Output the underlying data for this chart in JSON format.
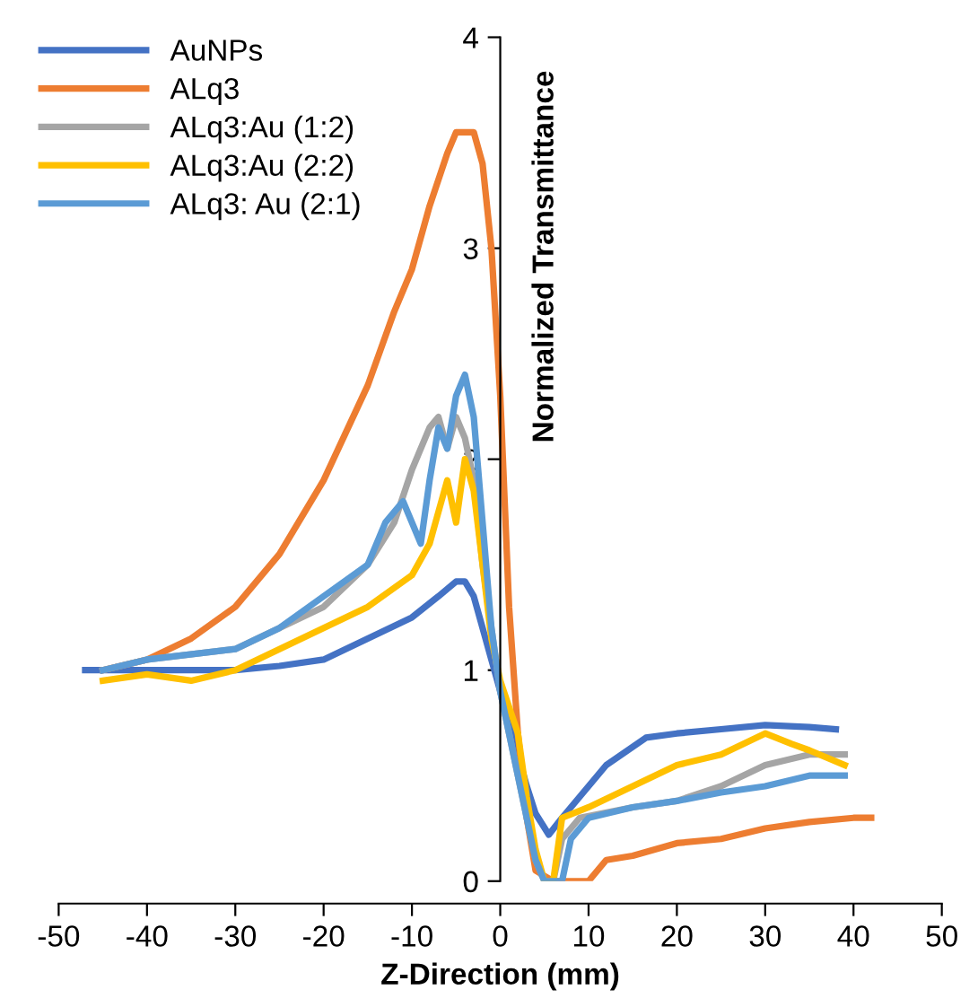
{
  "chart_data": {
    "type": "line",
    "xlabel": "Z-Direction (mm)",
    "ylabel": "Normalized Transmittance",
    "xlim": [
      -50,
      50
    ],
    "xticks": [
      -50,
      -40,
      -30,
      -20,
      -10,
      0,
      10,
      20,
      30,
      40,
      50
    ],
    "ylim": [
      0,
      4
    ],
    "yticks": [
      0,
      1,
      2,
      3,
      4
    ],
    "grid": false,
    "legend": "top left",
    "marker": "none",
    "line_style": "solid",
    "series": [
      {
        "name": "AuNPs",
        "color": "#4472c4",
        "x": [
          -47,
          -44,
          -40,
          -30,
          -25,
          -20,
          -15,
          -10,
          -7,
          -5,
          -4,
          -3,
          -2,
          -1,
          0,
          1,
          2,
          3,
          4,
          5.5,
          7,
          9,
          12,
          16.5,
          20,
          25,
          30,
          35,
          38
        ],
        "values": [
          1.0,
          1.0,
          1.0,
          1.0,
          1.02,
          1.05,
          1.15,
          1.25,
          1.35,
          1.42,
          1.42,
          1.35,
          1.2,
          1.05,
          0.9,
          0.75,
          0.6,
          0.45,
          0.32,
          0.22,
          0.3,
          0.4,
          0.55,
          0.68,
          0.7,
          0.72,
          0.74,
          0.73,
          0.72
        ]
      },
      {
        "name": "ALq3",
        "color": "#ed7d31",
        "x": [
          -45,
          -40,
          -35,
          -30,
          -25,
          -20,
          -15,
          -12,
          -10,
          -8,
          -6,
          -5,
          -3,
          -2,
          -1,
          0,
          1,
          2,
          3,
          4,
          6,
          8,
          10,
          12,
          15,
          20,
          25,
          30,
          35,
          40,
          42
        ],
        "values": [
          1.0,
          1.05,
          1.15,
          1.3,
          1.55,
          1.9,
          2.35,
          2.7,
          2.9,
          3.2,
          3.45,
          3.55,
          3.55,
          3.4,
          3.0,
          2.3,
          1.3,
          0.7,
          0.3,
          0.05,
          0.0,
          0.0,
          0.0,
          0.1,
          0.12,
          0.18,
          0.2,
          0.25,
          0.28,
          0.3,
          0.3
        ]
      },
      {
        "name": "ALq3:Au (1:2)",
        "color": "#a5a5a5",
        "x": [
          -45,
          -40,
          -30,
          -25,
          -20,
          -15,
          -12,
          -10,
          -8,
          -7,
          -6,
          -5,
          -4,
          -3,
          -2,
          -1,
          0,
          2,
          4,
          5,
          6,
          7,
          9,
          15,
          20,
          25,
          30,
          35,
          39
        ],
        "values": [
          1.0,
          1.05,
          1.1,
          1.2,
          1.3,
          1.5,
          1.7,
          1.95,
          2.15,
          2.2,
          2.05,
          2.2,
          2.1,
          1.9,
          1.5,
          1.2,
          0.9,
          0.5,
          0.1,
          0.0,
          0.0,
          0.2,
          0.3,
          0.35,
          0.38,
          0.45,
          0.55,
          0.6,
          0.6
        ]
      },
      {
        "name": "ALq3:Au (2:2)",
        "color": "#ffc000",
        "x": [
          -45,
          -40,
          -35,
          -30,
          -25,
          -20,
          -15,
          -10,
          -8,
          -7,
          -6,
          -5,
          -4,
          -3,
          -2,
          -1,
          0,
          2,
          3,
          4,
          5,
          6,
          7,
          10,
          15,
          20,
          25,
          30,
          33,
          35,
          39
        ],
        "values": [
          0.95,
          0.98,
          0.95,
          1.0,
          1.1,
          1.2,
          1.3,
          1.45,
          1.6,
          1.75,
          1.9,
          1.7,
          2.0,
          1.85,
          1.5,
          1.15,
          0.95,
          0.7,
          0.4,
          0.15,
          0.0,
          0.0,
          0.3,
          0.35,
          0.45,
          0.55,
          0.6,
          0.7,
          0.65,
          0.62,
          0.55
        ]
      },
      {
        "name": "ALq3: Au (2:1)",
        "color": "#5b9bd5",
        "x": [
          -45,
          -40,
          -30,
          -25,
          -20,
          -15,
          -13,
          -11,
          -9,
          -8,
          -7,
          -6,
          -5,
          -4,
          -3,
          -2,
          -1,
          0,
          2,
          4,
          5,
          7,
          8,
          10,
          15,
          20,
          25,
          30,
          35,
          39
        ],
        "values": [
          1.0,
          1.05,
          1.1,
          1.2,
          1.35,
          1.5,
          1.7,
          1.8,
          1.6,
          1.9,
          2.15,
          2.05,
          2.3,
          2.4,
          2.2,
          1.7,
          1.2,
          0.9,
          0.5,
          0.1,
          0.0,
          0.0,
          0.2,
          0.3,
          0.35,
          0.38,
          0.42,
          0.45,
          0.5,
          0.5
        ]
      }
    ]
  }
}
